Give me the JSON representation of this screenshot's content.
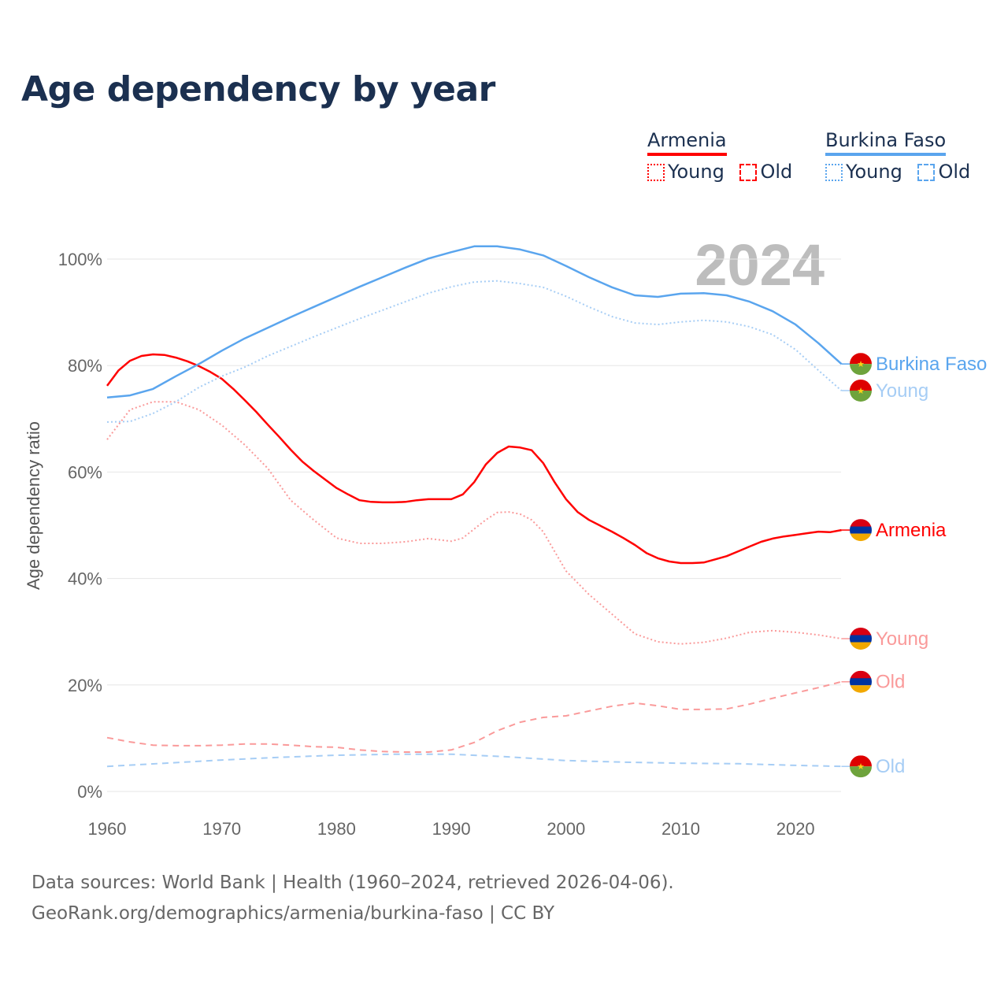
{
  "chart_data": {
    "type": "line",
    "title": "Age dependency by year",
    "ylabel": "Age dependency ratio",
    "xlabel": "",
    "xlim": [
      1960,
      2024
    ],
    "ylim": [
      0,
      100
    ],
    "x_ticks": [
      "1960",
      "1970",
      "1980",
      "1990",
      "2000",
      "2010",
      "2020"
    ],
    "y_ticks": [
      "0%",
      "20%",
      "40%",
      "60%",
      "80%",
      "100%"
    ],
    "year_label": "2024",
    "legend": {
      "placement": "top-right",
      "groups": [
        {
          "country": "Armenia",
          "color": "#ff0000",
          "young": "Young",
          "old": "Old"
        },
        {
          "country": "Burkina Faso",
          "color": "#5aa5ee",
          "young": "Young",
          "old": "Old"
        }
      ]
    },
    "series": [
      {
        "name": "Armenia",
        "label": "Armenia",
        "color": "#ff0000",
        "style": "solid",
        "flag": "armenia",
        "x": [
          1960,
          1961,
          1962,
          1963,
          1964,
          1965,
          1966,
          1967,
          1968,
          1969,
          1970,
          1971,
          1972,
          1973,
          1974,
          1975,
          1976,
          1977,
          1978,
          1979,
          1980,
          1981,
          1982,
          1983,
          1984,
          1985,
          1986,
          1987,
          1988,
          1989,
          1990,
          1991,
          1992,
          1993,
          1994,
          1995,
          1996,
          1997,
          1998,
          1999,
          2000,
          2001,
          2002,
          2003,
          2004,
          2005,
          2006,
          2007,
          2008,
          2009,
          2010,
          2011,
          2012,
          2013,
          2014,
          2015,
          2016,
          2017,
          2018,
          2019,
          2020,
          2021,
          2022,
          2023,
          2024
        ],
        "y": [
          76.2,
          79.1,
          80.9,
          81.8,
          82.1,
          82.0,
          81.5,
          80.8,
          79.9,
          78.8,
          77.5,
          75.6,
          73.5,
          71.3,
          68.9,
          66.6,
          64.2,
          62.0,
          60.2,
          58.6,
          57.0,
          55.8,
          54.7,
          54.4,
          54.3,
          54.3,
          54.4,
          54.7,
          54.9,
          54.9,
          54.9,
          55.8,
          58.1,
          61.4,
          63.6,
          64.8,
          64.6,
          64.1,
          61.7,
          58.1,
          54.9,
          52.5,
          51.0,
          49.9,
          48.8,
          47.6,
          46.3,
          44.8,
          43.8,
          43.2,
          42.9,
          42.9,
          43.0,
          43.6,
          44.2,
          45.1,
          46.0,
          46.9,
          47.5,
          47.9,
          48.2,
          48.5,
          48.8,
          48.7,
          49.1
        ]
      },
      {
        "name": "Armenia Young",
        "label": "Young",
        "color": "#fa9a9a",
        "style": "dotted",
        "flag": "armenia",
        "x": [
          1960,
          1962,
          1964,
          1966,
          1968,
          1970,
          1972,
          1974,
          1976,
          1978,
          1980,
          1982,
          1984,
          1986,
          1988,
          1990,
          1991,
          1992,
          1993,
          1994,
          1995,
          1996,
          1997,
          1998,
          1999,
          2000,
          2002,
          2004,
          2006,
          2008,
          2010,
          2012,
          2014,
          2016,
          2018,
          2020,
          2022,
          2024
        ],
        "y": [
          66.1,
          71.7,
          73.2,
          73.2,
          71.7,
          68.8,
          65.1,
          60.7,
          54.7,
          51.0,
          47.6,
          46.6,
          46.6,
          46.9,
          47.5,
          47.0,
          47.6,
          49.3,
          51.0,
          52.4,
          52.5,
          52.1,
          51.0,
          48.8,
          45.1,
          41.4,
          37.0,
          33.3,
          29.6,
          28.1,
          27.7,
          28.0,
          28.8,
          29.9,
          30.2,
          29.9,
          29.4,
          28.7
        ]
      },
      {
        "name": "Armenia Old",
        "label": "Old",
        "color": "#fa9a9a",
        "style": "dashed",
        "flag": "armenia",
        "x": [
          1960,
          1962,
          1964,
          1966,
          1968,
          1970,
          1972,
          1974,
          1976,
          1978,
          1980,
          1982,
          1984,
          1986,
          1988,
          1990,
          1992,
          1994,
          1996,
          1998,
          2000,
          2002,
          2004,
          2006,
          2008,
          2010,
          2012,
          2014,
          2016,
          2018,
          2020,
          2022,
          2024
        ],
        "y": [
          10.1,
          9.3,
          8.7,
          8.6,
          8.6,
          8.7,
          8.9,
          8.9,
          8.7,
          8.4,
          8.3,
          7.8,
          7.5,
          7.4,
          7.4,
          7.8,
          9.2,
          11.4,
          13.0,
          13.9,
          14.2,
          15.1,
          16.0,
          16.6,
          16.1,
          15.4,
          15.4,
          15.5,
          16.4,
          17.5,
          18.5,
          19.5,
          20.6
        ]
      },
      {
        "name": "Burkina Faso",
        "label": "Burkina Faso",
        "color": "#5aa5ee",
        "style": "solid",
        "flag": "burkina",
        "x": [
          1960,
          1962,
          1964,
          1966,
          1968,
          1970,
          1972,
          1974,
          1976,
          1978,
          1980,
          1982,
          1984,
          1986,
          1988,
          1990,
          1992,
          1994,
          1996,
          1998,
          2000,
          2002,
          2004,
          2006,
          2008,
          2010,
          2012,
          2014,
          2016,
          2018,
          2020,
          2022,
          2024
        ],
        "y": [
          74.0,
          74.4,
          75.6,
          78.0,
          80.3,
          82.8,
          85.1,
          87.1,
          89.1,
          91.0,
          92.9,
          94.8,
          96.6,
          98.4,
          100.1,
          101.3,
          102.4,
          102.4,
          101.8,
          100.7,
          98.7,
          96.6,
          94.7,
          93.2,
          92.9,
          93.5,
          93.6,
          93.2,
          92.0,
          90.2,
          87.7,
          84.2,
          80.3
        ]
      },
      {
        "name": "Burkina Faso Young",
        "label": "Young",
        "color": "#a6cdf5",
        "style": "dotted",
        "flag": "burkina",
        "x": [
          1960,
          1962,
          1964,
          1966,
          1968,
          1970,
          1972,
          1974,
          1976,
          1978,
          1980,
          1982,
          1984,
          1986,
          1988,
          1990,
          1992,
          1994,
          1996,
          1998,
          2000,
          2002,
          2004,
          2006,
          2008,
          2010,
          2012,
          2014,
          2016,
          2018,
          2020,
          2022,
          2024
        ],
        "y": [
          69.4,
          69.5,
          71.0,
          73.2,
          75.9,
          78.0,
          79.7,
          81.8,
          83.6,
          85.4,
          87.1,
          88.8,
          90.4,
          92.0,
          93.6,
          94.8,
          95.7,
          95.9,
          95.4,
          94.7,
          93.0,
          91.0,
          89.2,
          88.0,
          87.7,
          88.2,
          88.5,
          88.2,
          87.3,
          85.8,
          83.0,
          79.1,
          75.3
        ]
      },
      {
        "name": "Burkina Faso Old",
        "label": "Old",
        "color": "#a6cdf5",
        "style": "dashed",
        "flag": "burkina",
        "x": [
          1960,
          1965,
          1970,
          1975,
          1980,
          1985,
          1990,
          1995,
          2000,
          2005,
          2010,
          2015,
          2020,
          2024
        ],
        "y": [
          4.7,
          5.3,
          5.9,
          6.4,
          6.8,
          7.0,
          7.0,
          6.5,
          5.8,
          5.5,
          5.3,
          5.2,
          4.9,
          4.7
        ]
      }
    ]
  },
  "footer": {
    "line1": "Data sources: World Bank | Health (1960–2024, retrieved 2026-04-06).",
    "line2": "GeoRank.org/demographics/armenia/burkina-faso | CC BY"
  }
}
